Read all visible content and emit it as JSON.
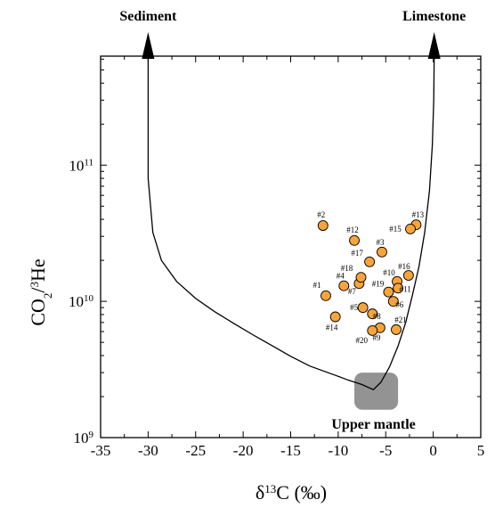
{
  "chart_data": {
    "type": "scatter",
    "xlabel_main": "δ",
    "xlabel_sup": "13",
    "xlabel_rest": "C (‰)",
    "ylabel_main": "CO",
    "ylabel_sub": "2",
    "ylabel_slash": "/",
    "ylabel_sup": "3",
    "ylabel_rest": "He",
    "xlim": [
      -35,
      5
    ],
    "ylim_log10": [
      9,
      11.8
    ],
    "y_scale": "log",
    "x_ticks": [
      -35,
      -30,
      -25,
      -20,
      -15,
      -10,
      -5,
      0,
      5
    ],
    "x_tick_labels": [
      "-35",
      "-30",
      "-25",
      "-20",
      "-15",
      "-10",
      "-5",
      "0",
      "5"
    ],
    "y_ticks_log10": [
      9,
      10,
      11
    ],
    "y_tick_labels": [
      {
        "base": "10",
        "exp": "9"
      },
      {
        "base": "10",
        "exp": "10"
      },
      {
        "base": "10",
        "exp": "11"
      }
    ],
    "point_color": "#f7a43a",
    "points": [
      {
        "label": "#1",
        "x": -11.3,
        "y": 11000000000.0
      },
      {
        "label": "#2",
        "x": -11.6,
        "y": 36000000000.0
      },
      {
        "label": "#3",
        "x": -5.4,
        "y": 23000000000.0
      },
      {
        "label": "#4",
        "x": -9.4,
        "y": 13000000000.0
      },
      {
        "label": "#5",
        "x": -7.4,
        "y": 9000000000.0
      },
      {
        "label": "#6",
        "x": -4.2,
        "y": 10000000000.0
      },
      {
        "label": "#7",
        "x": -7.8,
        "y": 13500000000.0
      },
      {
        "label": "#8",
        "x": -6.4,
        "y": 8100000000.0
      },
      {
        "label": "#9",
        "x": -5.6,
        "y": 6400000000.0
      },
      {
        "label": "#10",
        "x": -3.8,
        "y": 14000000000.0
      },
      {
        "label": "#11",
        "x": -3.7,
        "y": 12500000000.0
      },
      {
        "label": "#12",
        "x": -8.3,
        "y": 28000000000.0
      },
      {
        "label": "#13",
        "x": -1.8,
        "y": 36500000000.0
      },
      {
        "label": "#14",
        "x": -10.3,
        "y": 7700000000.0
      },
      {
        "label": "#15",
        "x": -2.4,
        "y": 34000000000.0
      },
      {
        "label": "#16",
        "x": -2.6,
        "y": 15500000000.0
      },
      {
        "label": "#17",
        "x": -6.7,
        "y": 19500000000.0
      },
      {
        "label": "#18",
        "x": -7.6,
        "y": 15000000000.0
      },
      {
        "label": "#19",
        "x": -4.7,
        "y": 11700000000.0
      },
      {
        "label": "#20",
        "x": -6.4,
        "y": 6100000000.0
      },
      {
        "label": "#21",
        "x": -3.9,
        "y": 6200000000.0
      }
    ],
    "mixing_curve": {
      "points": [
        [
          -30,
          630000000000.0
        ],
        [
          -30,
          80000000000.0
        ],
        [
          -29.5,
          32000000000.0
        ],
        [
          -28.6,
          20000000000.0
        ],
        [
          -27.0,
          14000000000.0
        ],
        [
          -25,
          10500000000.0
        ],
        [
          -23,
          8400000000.0
        ],
        [
          -21,
          6900000000.0
        ],
        [
          -19,
          5700000000.0
        ],
        [
          -17,
          4750000000.0
        ],
        [
          -15,
          3950000000.0
        ],
        [
          -13,
          3350000000.0
        ],
        [
          -10.5,
          2900000000.0
        ],
        [
          -9,
          2650000000.0
        ],
        [
          -7.5,
          2450000000.0
        ],
        [
          -6.3,
          2250000000.0
        ],
        [
          -5.5,
          2550000000.0
        ],
        [
          -4.6,
          3300000000.0
        ],
        [
          -3.7,
          4700000000.0
        ],
        [
          -2.9,
          7000000000.0
        ],
        [
          -2.2,
          11000000000.0
        ],
        [
          -1.5,
          18000000000.0
        ],
        [
          -0.9,
          32000000000.0
        ],
        [
          -0.4,
          65000000000.0
        ],
        [
          -0.1,
          140000000000.0
        ],
        [
          0.05,
          300000000000.0
        ],
        [
          0.1,
          630000000000.0
        ]
      ]
    },
    "arrows": [
      {
        "label": "Sediment",
        "x": -30
      },
      {
        "label": "Limestone",
        "x": 0.1
      }
    ],
    "box": {
      "label": "Upper mantle",
      "x_range": [
        -8.3,
        -3.7
      ],
      "y_range": [
        1600000000.0,
        3000000000.0
      ],
      "color": "#808080"
    }
  }
}
